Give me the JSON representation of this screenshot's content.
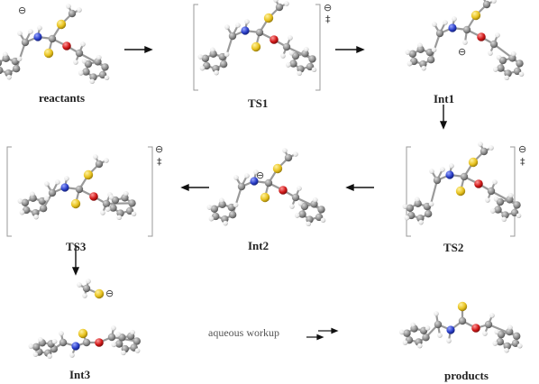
{
  "labels": {
    "reactants": "reactants",
    "ts1": "TS1",
    "int1": "Int1",
    "ts2": "TS2",
    "int2": "Int2",
    "ts3": "TS3",
    "int3": "Int3",
    "products": "products"
  },
  "workup": "aqueous workup",
  "symbols": {
    "minus": "⊖",
    "dagger": "‡"
  },
  "colors": {
    "carbon": "#8c8c8c",
    "hydrogen": "#ececec",
    "sulfur": "#e8c21e",
    "nitrogen": "#2a3ec8",
    "oxygen": "#d01818",
    "bond": "#9a9a9a",
    "arrow": "#111111",
    "bracket": "#9a9a9a"
  }
}
